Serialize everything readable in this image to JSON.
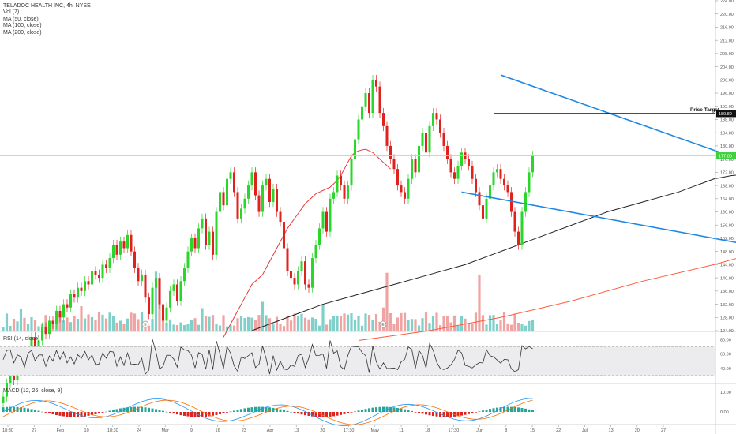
{
  "legend": {
    "symbol": "TELADOC HEALTH INC, 4h, NYSE",
    "volume": "Vol (7)",
    "ma50": "MA (50, close)",
    "ma100": "MA (100, close)",
    "ma200": "MA (200, close)"
  },
  "rsi": {
    "label": "RSI (14, close)"
  },
  "macd": {
    "label": "MACD (12, 26, close, 9)"
  },
  "colors": {
    "up": "#26a69a",
    "up_candle": "#2bd62b",
    "down": "#e0221f",
    "vol_up": "#7fd0c8",
    "vol_down": "#f0a3a3",
    "trendline": "#1e88e5",
    "ma50": "#e53935",
    "ma100": "#222222",
    "ma200": "#ff5a3a",
    "last_price_line": "#9ee89e",
    "target_line": "#111111"
  },
  "chart_data": {
    "type": "candlestick",
    "symbol": "TELADOC HEALTH INC",
    "interval": "4h",
    "exchange": "NYSE",
    "y_axis": {
      "min": 124,
      "max": 224,
      "ticks": [
        "224.00",
        "220.00",
        "216.00",
        "212.00",
        "208.00",
        "204.00",
        "200.00",
        "196.00",
        "192.00",
        "188.00",
        "184.00",
        "180.00",
        "176.00",
        "172.00",
        "168.00",
        "164.00",
        "160.00",
        "156.00",
        "152.00",
        "148.00",
        "144.00",
        "140.00",
        "136.00",
        "132.00",
        "128.00",
        "124.00"
      ]
    },
    "x_axis": {
      "ticks": [
        "18:30",
        "27",
        "Feb",
        "10",
        "18:30",
        "24",
        "Mar",
        "9",
        "16",
        "23",
        "Apr",
        "13",
        "20",
        "17:30",
        "May",
        "11",
        "18",
        "17:30",
        "Jun",
        "8",
        "15",
        "22",
        "Jul",
        "13",
        "20",
        "27"
      ]
    },
    "price_target": {
      "label": "Price Target",
      "value": "189.80",
      "price": 189.8
    },
    "last_price_badge": "177.00",
    "last_price": 177.0,
    "earnings_markers": [
      "E",
      "E"
    ],
    "closes": [
      104,
      108,
      112,
      109,
      113,
      117,
      114,
      118,
      122,
      119,
      121,
      125,
      123,
      127,
      126,
      130,
      128,
      132,
      131,
      135,
      134,
      137,
      136,
      139,
      138,
      142,
      141,
      140,
      144,
      143,
      146,
      150,
      147,
      151,
      149,
      153,
      148,
      143,
      139,
      141,
      134,
      129,
      137,
      140,
      132,
      127,
      131,
      136,
      138,
      133,
      139,
      143,
      148,
      152,
      149,
      155,
      158,
      150,
      154,
      147,
      160,
      166,
      162,
      170,
      172,
      166,
      158,
      161,
      164,
      168,
      172,
      165,
      160,
      168,
      170,
      163,
      167,
      160,
      157,
      149,
      142,
      140,
      138,
      142,
      145,
      138,
      137,
      146,
      150,
      155,
      160,
      154,
      164,
      166,
      171,
      168,
      164,
      168,
      176,
      182,
      188,
      192,
      196,
      190,
      200,
      198,
      190,
      186,
      180,
      176,
      173,
      168,
      166,
      164,
      170,
      176,
      172,
      180,
      184,
      178,
      186,
      190,
      188,
      184,
      180,
      176,
      172,
      170,
      174,
      178,
      176,
      174,
      170,
      166,
      162,
      158,
      164,
      168,
      172,
      173,
      170,
      168,
      166,
      160,
      154,
      150,
      160,
      166,
      172,
      177
    ],
    "ma50": [
      null,
      null,
      null,
      null,
      null,
      null,
      null,
      null,
      null,
      null,
      null,
      null,
      null,
      null,
      null,
      null,
      null,
      null,
      null,
      null,
      null,
      null,
      null,
      null,
      null,
      null,
      null,
      null,
      null,
      null,
      null,
      null,
      null,
      null,
      null,
      null,
      null,
      null,
      null,
      null,
      null,
      null,
      null,
      null,
      null,
      null,
      null,
      null,
      null,
      null,
      null,
      null,
      null,
      null,
      null,
      null,
      null,
      null,
      null,
      null,
      null,
      null,
      122,
      124,
      126,
      128,
      130,
      132,
      134,
      136,
      138,
      139,
      140,
      141,
      143,
      145,
      147,
      149,
      151,
      153,
      155,
      156.5,
      158,
      159.5,
      161,
      162.5,
      163.5,
      164.5,
      165.5,
      166,
      166.5,
      167,
      167.5,
      168.5,
      169.5,
      171,
      173,
      175,
      177,
      178,
      178.5,
      178.8,
      179,
      178.5,
      178,
      177,
      176,
      175,
      174,
      173
    ],
    "ma100": [
      null,
      null,
      null,
      null,
      null,
      null,
      null,
      null,
      null,
      null,
      null,
      null,
      null,
      null,
      null,
      null,
      null,
      null,
      null,
      null,
      null,
      null,
      null,
      null,
      null,
      null,
      null,
      null,
      null,
      null,
      null,
      null,
      null,
      null,
      null,
      null,
      null,
      null,
      null,
      null,
      null,
      null,
      null,
      null,
      null,
      null,
      null,
      null,
      null,
      null,
      null,
      null,
      null,
      null,
      null,
      null,
      null,
      null,
      null,
      null,
      null,
      null,
      null,
      null,
      null,
      null,
      null,
      null,
      null,
      null,
      null,
      null,
      null,
      null,
      null,
      null,
      null,
      null,
      null,
      null,
      null,
      null,
      null,
      null,
      null,
      null,
      null,
      null,
      null,
      null,
      null,
      null,
      null,
      null,
      null,
      null,
      null,
      null,
      null,
      null,
      null,
      null,
      null,
      null,
      null,
      null,
      null,
      null,
      null,
      null
    ],
    "ma100_points": [
      [
        70,
        124
      ],
      [
        80,
        128
      ],
      [
        90,
        132
      ],
      [
        100,
        135
      ],
      [
        110,
        138
      ],
      [
        120,
        141
      ],
      [
        130,
        144
      ],
      [
        140,
        148
      ],
      [
        150,
        152
      ],
      [
        160,
        156
      ],
      [
        170,
        160
      ],
      [
        180,
        163
      ],
      [
        190,
        166
      ],
      [
        195,
        168
      ],
      [
        200,
        170
      ],
      [
        205,
        171
      ],
      [
        210,
        171.5
      ]
    ],
    "ma200_points": [
      [
        100,
        121
      ],
      [
        120,
        124
      ],
      [
        140,
        128
      ],
      [
        160,
        133
      ],
      [
        180,
        139
      ],
      [
        200,
        144
      ],
      [
        210,
        147
      ]
    ],
    "trendline_upper": {
      "from": [
        140,
        201.5
      ],
      "to": [
        215,
        173
      ]
    },
    "trendline_lower": {
      "from": [
        129,
        166
      ],
      "to": [
        210,
        150
      ]
    },
    "rsi": {
      "ticks": [
        "80.00",
        "60.00",
        "40.00"
      ],
      "band": [
        30,
        70
      ]
    },
    "macd": {
      "ticks": [
        "10.00",
        "0.00"
      ]
    }
  }
}
